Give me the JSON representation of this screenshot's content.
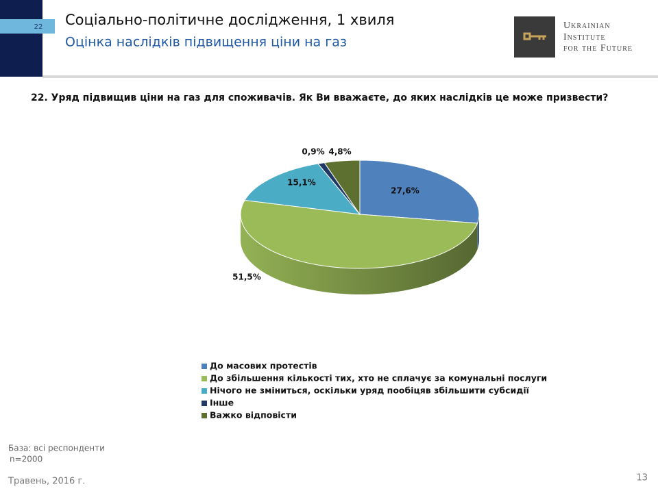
{
  "header": {
    "slide_number": "22",
    "title": "Соціально-політичне дослідження, 1 хвиля",
    "subtitle": "Оцінка наслідків підвищення ціни на газ",
    "logo_lines": [
      "Ukrainian",
      "Institute",
      "for the Future"
    ]
  },
  "chart_data": {
    "type": "pie",
    "title": "22. Уряд підвищив ціни на газ для споживачів. Як Ви вважаєте, до яких наслідків це може призвести?",
    "categories": [
      "До масових протестів",
      "До збільшення кількості тих, хто не сплачує за комунальні послуги",
      "Нічого не зміниться, оскільки уряд пообіцяв збільшити  субсидії",
      "Інше",
      "Важко відповісти"
    ],
    "values": [
      27.6,
      51.5,
      15.1,
      0.9,
      4.8
    ],
    "value_labels": [
      "27,6%",
      "51,5%",
      "15,1%",
      "0,9%",
      "4,8%"
    ],
    "colors": [
      "#4f81bd",
      "#9bbb59",
      "#4bacc6",
      "#1f3864",
      "#5e7030"
    ]
  },
  "footer": {
    "base": "База: всі респонденти",
    "sample": "n=2000",
    "date": "Травень, 2016 г.",
    "page_number": "13"
  }
}
